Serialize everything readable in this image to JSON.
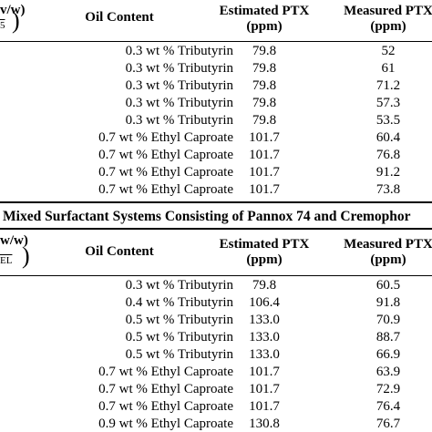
{
  "columns": {
    "stub_a": "v/w)",
    "stub_a_sub": "5",
    "stub_b": "w/w)",
    "stub_b_sub": "EL",
    "oil": "Oil Content",
    "est_1": "Estimated PTX",
    "est_2": "(ppm)",
    "meas_1": "Measured PTX",
    "meas_2": "(ppm)"
  },
  "section_b_title": ") Mixed Surfactant Systems Consisting of Pannox 74 and Cremophor",
  "table_a": [
    {
      "oil": "0.3 wt % Tributyrin",
      "est": "79.8",
      "meas": "52"
    },
    {
      "oil": "0.3 wt % Tributyrin",
      "est": "79.8",
      "meas": "61"
    },
    {
      "oil": "0.3 wt % Tributyrin",
      "est": "79.8",
      "meas": "71.2"
    },
    {
      "oil": "0.3 wt % Tributyrin",
      "est": "79.8",
      "meas": "57.3"
    },
    {
      "oil": "0.3 wt % Tributyrin",
      "est": "79.8",
      "meas": "53.5"
    },
    {
      "oil": "0.7 wt % Ethyl Caproate",
      "est": "101.7",
      "meas": "60.4"
    },
    {
      "oil": "0.7 wt % Ethyl Caproate",
      "est": "101.7",
      "meas": "76.8"
    },
    {
      "oil": "0.7 wt % Ethyl Caproate",
      "est": "101.7",
      "meas": "91.2"
    },
    {
      "oil": "0.7 wt % Ethyl Caproate",
      "est": "101.7",
      "meas": "73.8"
    }
  ],
  "table_b": [
    {
      "oil": "0.3 wt % Tributyrin",
      "est": "79.8",
      "meas": "60.5"
    },
    {
      "oil": "0.4 wt % Tributyrin",
      "est": "106.4",
      "meas": "91.8"
    },
    {
      "oil": "0.5 wt % Tributyrin",
      "est": "133.0",
      "meas": "70.9"
    },
    {
      "oil": "0.5 wt % Tributyrin",
      "est": "133.0",
      "meas": "88.7"
    },
    {
      "oil": "0.5 wt % Tributyrin",
      "est": "133.0",
      "meas": "66.9"
    },
    {
      "oil": "0.7 wt % Ethyl Caproate",
      "est": "101.7",
      "meas": "63.9"
    },
    {
      "oil": "0.7 wt % Ethyl Caproate",
      "est": "101.7",
      "meas": "72.9"
    },
    {
      "oil": "0.7 wt % Ethyl Caproate",
      "est": "101.7",
      "meas": "76.4"
    },
    {
      "oil": "0.9 wt % Ethyl Caproate",
      "est": "130.8",
      "meas": "76.7"
    }
  ]
}
